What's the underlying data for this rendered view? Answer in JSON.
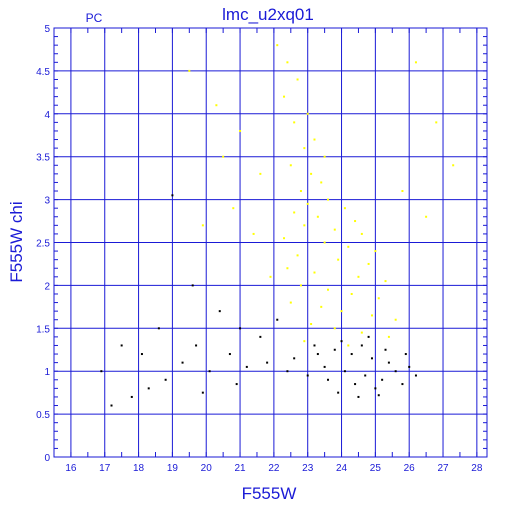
{
  "chart_data": {
    "type": "scatter",
    "title": "lmc_u2xq01",
    "corner_label": "PC",
    "xlabel": "F555W",
    "ylabel": "F555W  chi",
    "xlim": [
      15.5,
      28.3
    ],
    "ylim": [
      0,
      5
    ],
    "x_ticks": [
      "16",
      "17",
      "18",
      "19",
      "20",
      "21",
      "22",
      "23",
      "24",
      "25",
      "26",
      "27",
      "28"
    ],
    "y_ticks": [
      "0",
      "0.5",
      "1",
      "1.5",
      "2",
      "2.5",
      "3",
      "3.5",
      "4",
      "4.5",
      "5"
    ],
    "grid": true,
    "colors": {
      "axis": "#1a1ad6",
      "grid": "#1a1ad6",
      "yellow_series": "#ffff00",
      "black_series": "#000000"
    },
    "series": [
      {
        "color": "yellow",
        "points": [
          [
            22.1,
            4.8
          ],
          [
            22.4,
            4.6
          ],
          [
            22.7,
            4.4
          ],
          [
            22.3,
            4.2
          ],
          [
            23.0,
            4.0
          ],
          [
            22.6,
            3.9
          ],
          [
            23.2,
            3.7
          ],
          [
            22.9,
            3.6
          ],
          [
            23.5,
            3.5
          ],
          [
            22.5,
            3.4
          ],
          [
            23.1,
            3.3
          ],
          [
            23.4,
            3.2
          ],
          [
            22.8,
            3.1
          ],
          [
            23.6,
            3.0
          ],
          [
            23.0,
            2.95
          ],
          [
            24.1,
            2.9
          ],
          [
            22.6,
            2.85
          ],
          [
            23.3,
            2.8
          ],
          [
            24.4,
            2.75
          ],
          [
            22.9,
            2.7
          ],
          [
            23.8,
            2.65
          ],
          [
            24.6,
            2.6
          ],
          [
            22.3,
            2.55
          ],
          [
            23.5,
            2.5
          ],
          [
            24.2,
            2.45
          ],
          [
            25.0,
            2.4
          ],
          [
            22.7,
            2.35
          ],
          [
            23.9,
            2.3
          ],
          [
            24.8,
            2.25
          ],
          [
            22.4,
            2.2
          ],
          [
            23.2,
            2.15
          ],
          [
            24.5,
            2.1
          ],
          [
            25.3,
            2.05
          ],
          [
            22.8,
            2.0
          ],
          [
            23.6,
            1.95
          ],
          [
            24.3,
            1.9
          ],
          [
            25.1,
            1.85
          ],
          [
            22.5,
            1.8
          ],
          [
            23.4,
            1.75
          ],
          [
            24.0,
            1.7
          ],
          [
            24.9,
            1.65
          ],
          [
            25.6,
            1.6
          ],
          [
            23.1,
            1.55
          ],
          [
            23.8,
            1.5
          ],
          [
            24.6,
            1.45
          ],
          [
            25.4,
            1.4
          ],
          [
            22.9,
            1.35
          ],
          [
            24.2,
            1.3
          ],
          [
            19.5,
            4.5
          ],
          [
            20.3,
            4.1
          ],
          [
            21.0,
            3.8
          ],
          [
            21.6,
            3.3
          ],
          [
            20.8,
            2.9
          ],
          [
            21.4,
            2.6
          ],
          [
            26.2,
            4.6
          ],
          [
            26.8,
            3.9
          ],
          [
            27.3,
            3.4
          ],
          [
            26.5,
            2.8
          ],
          [
            25.8,
            3.1
          ],
          [
            21.9,
            2.1
          ],
          [
            20.5,
            3.5
          ],
          [
            19.9,
            2.7
          ]
        ]
      },
      {
        "color": "black",
        "points": [
          [
            23.2,
            1.3
          ],
          [
            23.8,
            1.25
          ],
          [
            24.3,
            1.2
          ],
          [
            24.9,
            1.15
          ],
          [
            25.4,
            1.1
          ],
          [
            23.5,
            1.05
          ],
          [
            24.1,
            1.0
          ],
          [
            24.7,
            0.95
          ],
          [
            25.2,
            0.9
          ],
          [
            25.8,
            0.85
          ],
          [
            23.0,
            0.95
          ],
          [
            23.6,
            0.9
          ],
          [
            24.4,
            0.85
          ],
          [
            25.0,
            0.8
          ],
          [
            25.6,
            1.0
          ],
          [
            26.0,
            1.05
          ],
          [
            22.6,
            1.15
          ],
          [
            23.3,
            1.2
          ],
          [
            24.0,
            1.35
          ],
          [
            24.6,
            1.3
          ],
          [
            25.3,
            1.25
          ],
          [
            25.9,
            1.2
          ],
          [
            26.2,
            0.95
          ],
          [
            24.8,
            1.4
          ],
          [
            23.9,
            0.75
          ],
          [
            24.5,
            0.7
          ],
          [
            25.1,
            0.72
          ],
          [
            22.4,
            1.0
          ],
          [
            21.8,
            1.1
          ],
          [
            21.2,
            1.05
          ],
          [
            20.7,
            1.2
          ],
          [
            20.1,
            1.0
          ],
          [
            19.7,
            1.3
          ],
          [
            19.3,
            1.1
          ],
          [
            18.8,
            0.9
          ],
          [
            18.3,
            0.8
          ],
          [
            17.8,
            0.7
          ],
          [
            17.2,
            0.6
          ],
          [
            16.9,
            1.0
          ],
          [
            17.5,
            1.3
          ],
          [
            18.6,
            1.5
          ],
          [
            19.0,
            3.05
          ],
          [
            19.6,
            2.0
          ],
          [
            20.4,
            1.7
          ],
          [
            21.0,
            1.5
          ],
          [
            21.6,
            1.4
          ],
          [
            22.1,
            1.6
          ],
          [
            20.9,
            0.85
          ],
          [
            19.9,
            0.75
          ],
          [
            18.1,
            1.2
          ]
        ]
      }
    ]
  }
}
